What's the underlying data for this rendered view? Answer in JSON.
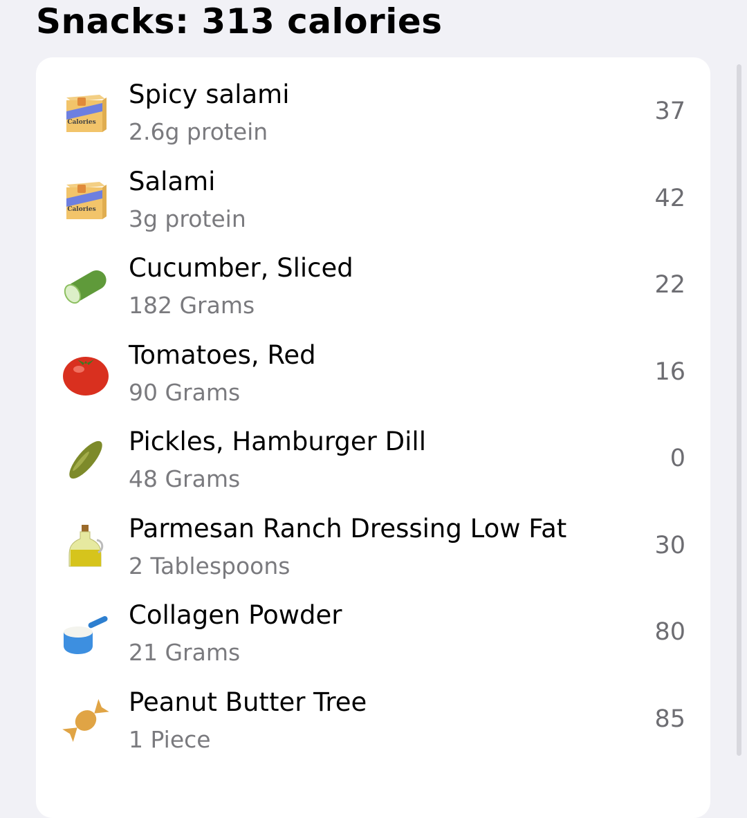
{
  "header": {
    "title": "Snacks: 313 calories"
  },
  "items": [
    {
      "name": "Spicy salami",
      "detail": "2.6g protein",
      "calories": "37",
      "icon": "calories-box-icon"
    },
    {
      "name": "Salami",
      "detail": "3g protein",
      "calories": "42",
      "icon": "calories-box-icon"
    },
    {
      "name": "Cucumber, Sliced",
      "detail": "182 Grams",
      "calories": "22",
      "icon": "cucumber-icon"
    },
    {
      "name": "Tomatoes, Red",
      "detail": "90 Grams",
      "calories": "16",
      "icon": "tomato-icon"
    },
    {
      "name": "Pickles, Hamburger Dill",
      "detail": "48 Grams",
      "calories": "0",
      "icon": "pickle-icon"
    },
    {
      "name": "Parmesan Ranch Dressing Low Fat",
      "detail": "2 Tablespoons",
      "calories": "30",
      "icon": "oil-bottle-icon"
    },
    {
      "name": "Collagen Powder",
      "detail": "21 Grams",
      "calories": "80",
      "icon": "measuring-scoop-icon"
    },
    {
      "name": "Peanut Butter Tree",
      "detail": "1 Piece",
      "calories": "85",
      "icon": "candy-icon"
    }
  ],
  "icon_label": "Calories"
}
